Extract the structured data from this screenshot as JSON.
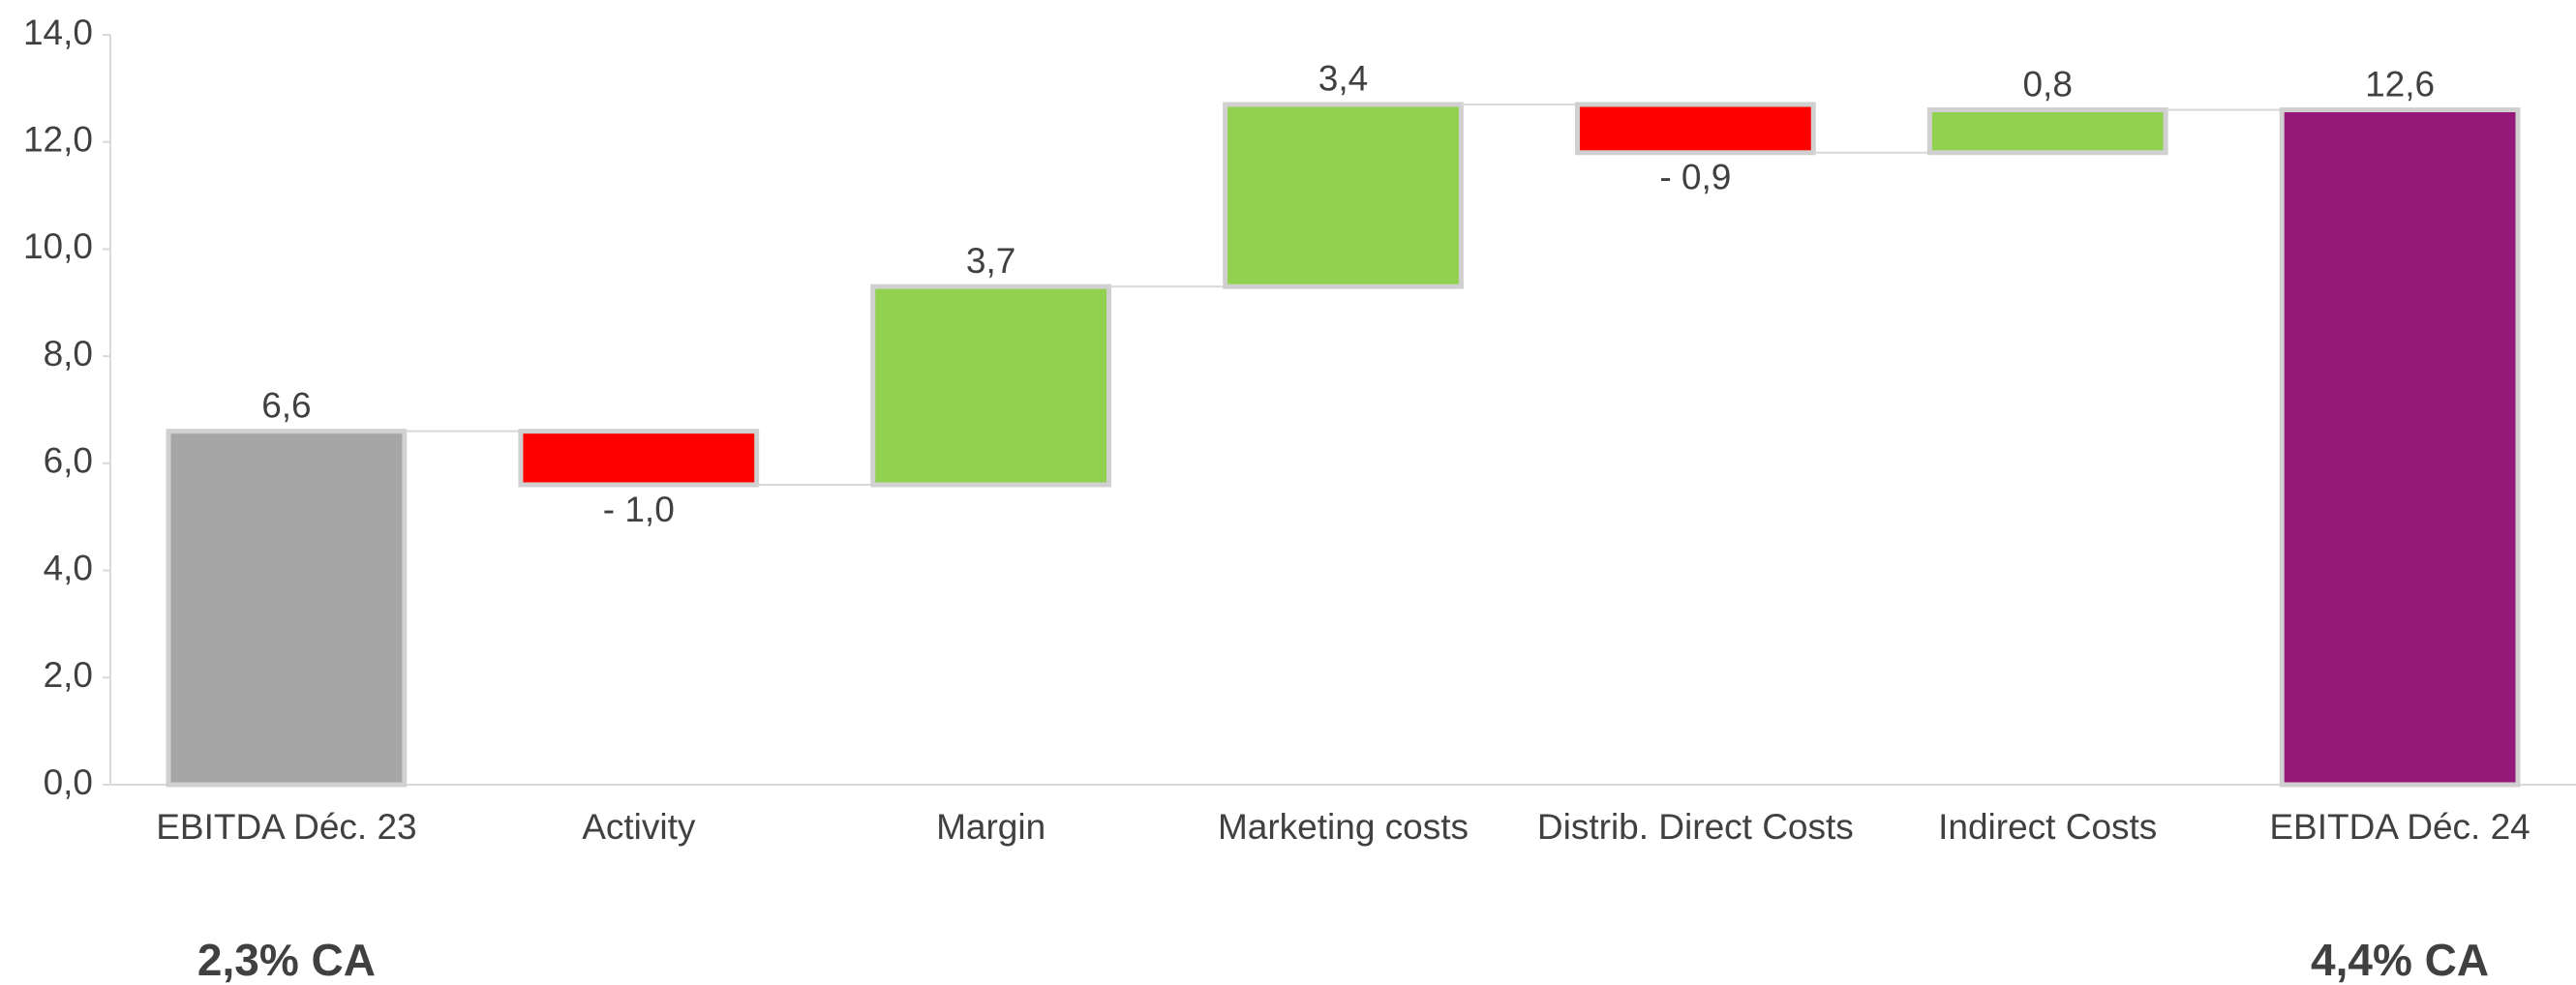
{
  "chart_data": {
    "type": "waterfall",
    "categories": [
      "EBITDA Déc. 23",
      "Activity",
      "Margin",
      "Marketing costs",
      "Distrib. Direct Costs",
      "Indirect Costs",
      "EBITDA Déc. 24"
    ],
    "values": [
      6.6,
      -1.0,
      3.7,
      3.4,
      -0.9,
      0.8,
      12.6
    ],
    "value_labels": [
      "6,6",
      "- 1,0",
      "3,7",
      "3,4",
      "- 0,9",
      "0,8",
      "12,6"
    ],
    "total_bars": [
      true,
      false,
      false,
      false,
      false,
      false,
      true
    ],
    "colors": [
      "#a6a6a6",
      "#ff0000",
      "#92d050",
      "#92d050",
      "#ff0000",
      "#92d050",
      "#951878"
    ],
    "annotations": [
      "2,3% CA",
      null,
      null,
      null,
      null,
      null,
      "4,4% CA"
    ],
    "ylim": [
      0,
      14
    ],
    "yticks": [
      {
        "value": 0,
        "label": "0,0"
      },
      {
        "value": 2,
        "label": "2,0"
      },
      {
        "value": 4,
        "label": "4,0"
      },
      {
        "value": 6,
        "label": "6,0"
      },
      {
        "value": 8,
        "label": "8,0"
      },
      {
        "value": 10,
        "label": "10,0"
      },
      {
        "value": 12,
        "label": "12,0"
      },
      {
        "value": 14,
        "label": "14,0"
      }
    ],
    "grid": false
  }
}
